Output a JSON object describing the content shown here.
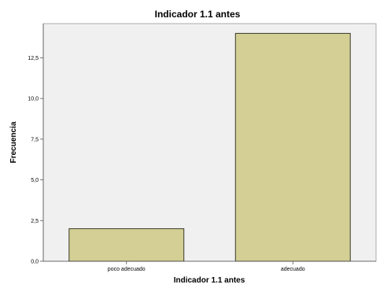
{
  "chart_data": {
    "type": "bar",
    "title": "Indicador 1.1 antes",
    "xlabel": "Indicador 1.1 antes",
    "ylabel": "Frecuencia",
    "categories": [
      "poco adecuado",
      "adecuado"
    ],
    "values": [
      2,
      14
    ],
    "ylim": [
      0,
      14.6
    ],
    "yticks": [
      "0,0",
      "2,5",
      "5,0",
      "7,5",
      "10,0",
      "12,5"
    ],
    "ytick_values": [
      0,
      2.5,
      5,
      7.5,
      10,
      12.5
    ],
    "grid": false,
    "colors": {
      "bar_fill": "#d3cf95",
      "bar_stroke": "#3a3a2a",
      "plot_bg": "#f0f0f0",
      "axis": "#555555"
    }
  }
}
